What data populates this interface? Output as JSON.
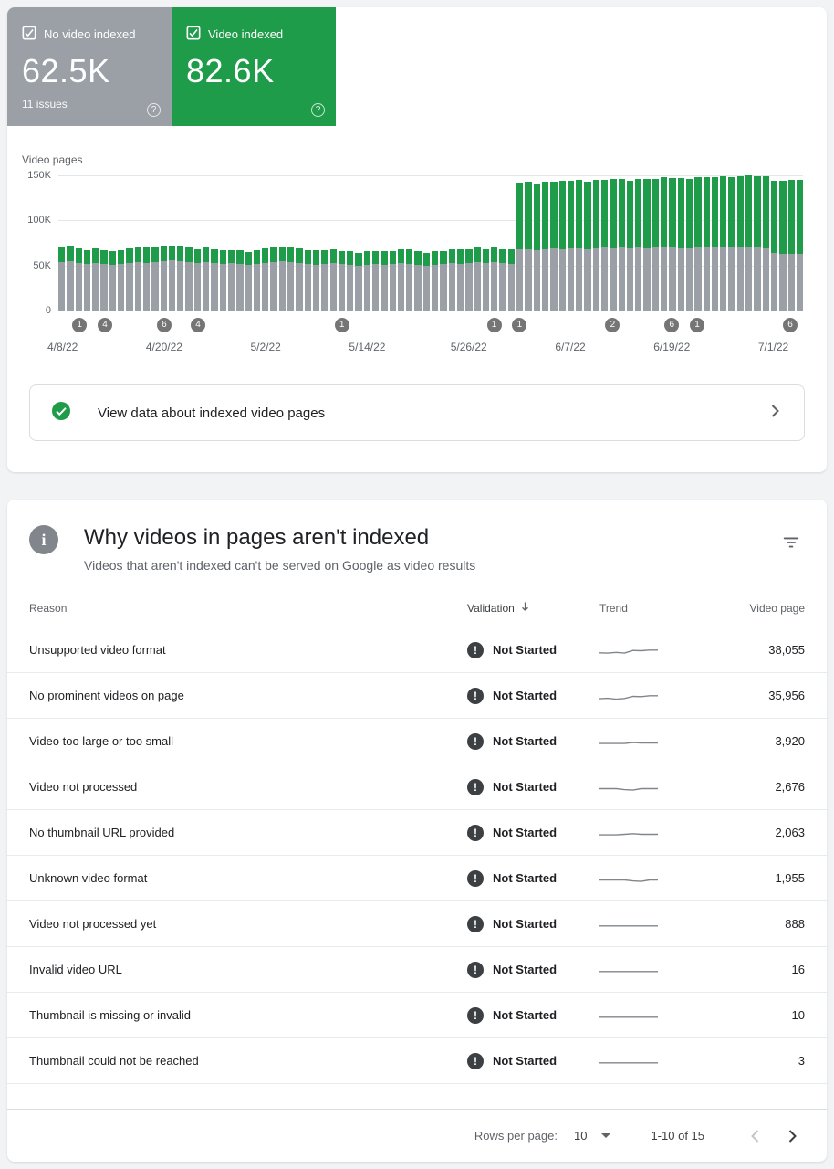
{
  "colors": {
    "green": "#1e9c49",
    "gray": "#9aa0a6",
    "page_bg": "#f1f3f4",
    "status_icon": "#3c4043",
    "marker": "#757575",
    "sparkline": "#80868b"
  },
  "summary": {
    "cards": [
      {
        "id": "not-indexed",
        "label": "No video indexed",
        "value": "62.5K",
        "sub": "11 issues",
        "checked": true,
        "color": "#9aa0a6"
      },
      {
        "id": "indexed",
        "label": "Video indexed",
        "value": "82.6K",
        "sub": "",
        "checked": true,
        "color": "#1e9c49"
      }
    ]
  },
  "chart": {
    "title": "Video pages",
    "y_ticks": [
      "150K",
      "100K",
      "50K",
      "0"
    ],
    "x_ticks": [
      {
        "i": 0,
        "label": "4/8/22"
      },
      {
        "i": 12,
        "label": "4/20/22"
      },
      {
        "i": 24,
        "label": "5/2/22"
      },
      {
        "i": 36,
        "label": "5/14/22"
      },
      {
        "i": 48,
        "label": "5/26/22"
      },
      {
        "i": 60,
        "label": "6/7/22"
      },
      {
        "i": 72,
        "label": "6/19/22"
      },
      {
        "i": 84,
        "label": "7/1/22"
      }
    ],
    "markers": [
      {
        "i": 2,
        "n": "1"
      },
      {
        "i": 5,
        "n": "4"
      },
      {
        "i": 12,
        "n": "6"
      },
      {
        "i": 16,
        "n": "4"
      },
      {
        "i": 33,
        "n": "1"
      },
      {
        "i": 51,
        "n": "1"
      },
      {
        "i": 54,
        "n": "1"
      },
      {
        "i": 65,
        "n": "2"
      },
      {
        "i": 72,
        "n": "6"
      },
      {
        "i": 75,
        "n": "1"
      },
      {
        "i": 86,
        "n": "6"
      }
    ]
  },
  "chart_data": {
    "type": "bar",
    "stacked": true,
    "title": "Video pages",
    "ylabel": "Video pages (thousands)",
    "ylim": [
      0,
      150
    ],
    "x_start": "4/8/22",
    "x_end": "7/4/22",
    "x_interval": "daily",
    "legend_position": "none",
    "grid": true,
    "series": [
      {
        "name": "No video indexed",
        "color": "#9aa0a6",
        "values": [
          54,
          55,
          53,
          52,
          53,
          52,
          51,
          52,
          53,
          54,
          53,
          54,
          55,
          56,
          55,
          54,
          53,
          54,
          53,
          52,
          53,
          52,
          51,
          52,
          53,
          54,
          55,
          54,
          53,
          52,
          51,
          52,
          53,
          52,
          51,
          50,
          51,
          52,
          51,
          52,
          53,
          52,
          51,
          50,
          51,
          52,
          53,
          52,
          53,
          54,
          53,
          54,
          53,
          52,
          68,
          68,
          67,
          68,
          69,
          68,
          69,
          69,
          68,
          69,
          70,
          69,
          70,
          69,
          70,
          69,
          70,
          70,
          70,
          69,
          69,
          70,
          70,
          70,
          70,
          70,
          70,
          70,
          70,
          69,
          64,
          63,
          63,
          62.5
        ]
      },
      {
        "name": "Video indexed",
        "color": "#1e9c49",
        "values": [
          16,
          17,
          16,
          15,
          16,
          15,
          15,
          15,
          16,
          16,
          17,
          16,
          17,
          16,
          17,
          16,
          15,
          16,
          15,
          15,
          14,
          15,
          14,
          15,
          16,
          17,
          16,
          17,
          16,
          15,
          16,
          15,
          15,
          14,
          15,
          14,
          15,
          14,
          15,
          14,
          15,
          16,
          15,
          14,
          15,
          14,
          15,
          16,
          15,
          16,
          15,
          16,
          15,
          16,
          74,
          75,
          74,
          75,
          74,
          76,
          75,
          76,
          75,
          76,
          75,
          77,
          76,
          75,
          76,
          77,
          76,
          78,
          77,
          78,
          77,
          78,
          78,
          78,
          79,
          78,
          79,
          80,
          79,
          80,
          80,
          81,
          82,
          82.6
        ]
      }
    ]
  },
  "banner": {
    "text": "View data about indexed video pages"
  },
  "why": {
    "title": "Why videos in pages aren't indexed",
    "subtitle": "Videos that aren't indexed can't be served on Google as video results"
  },
  "table": {
    "columns": [
      "Reason",
      "Validation",
      "Trend",
      "Video page"
    ],
    "sorted_by": "Validation",
    "rows": [
      {
        "reason": "Unsupported video format",
        "validation": "Not Started",
        "video_pages": "38,055",
        "trend": [
          0.32,
          0.3,
          0.36,
          0.3,
          0.52,
          0.5,
          0.55,
          0.55
        ]
      },
      {
        "reason": "No prominent videos on page",
        "validation": "Not Started",
        "video_pages": "35,956",
        "trend": [
          0.3,
          0.34,
          0.26,
          0.32,
          0.5,
          0.48,
          0.55,
          0.55
        ]
      },
      {
        "reason": "Video too large or too small",
        "validation": "Not Started",
        "video_pages": "3,920",
        "trend": [
          0.38,
          0.38,
          0.38,
          0.38,
          0.46,
          0.42,
          0.42,
          0.42
        ]
      },
      {
        "reason": "Video not processed",
        "validation": "Not Started",
        "video_pages": "2,676",
        "trend": [
          0.42,
          0.42,
          0.42,
          0.34,
          0.3,
          0.42,
          0.42,
          0.42
        ]
      },
      {
        "reason": "No thumbnail URL provided",
        "validation": "Not Started",
        "video_pages": "2,063",
        "trend": [
          0.38,
          0.38,
          0.38,
          0.42,
          0.48,
          0.42,
          0.42,
          0.42
        ]
      },
      {
        "reason": "Unknown video format",
        "validation": "Not Started",
        "video_pages": "1,955",
        "trend": [
          0.42,
          0.42,
          0.42,
          0.42,
          0.34,
          0.3,
          0.42,
          0.42
        ]
      },
      {
        "reason": "Video not processed yet",
        "validation": "Not Started",
        "video_pages": "888",
        "trend": [
          0.4,
          0.4,
          0.4,
          0.4,
          0.4,
          0.4,
          0.4,
          0.4
        ]
      },
      {
        "reason": "Invalid video URL",
        "validation": "Not Started",
        "video_pages": "16",
        "trend": [
          0.4,
          0.4,
          0.4,
          0.4,
          0.4,
          0.4,
          0.4,
          0.4
        ]
      },
      {
        "reason": "Thumbnail is missing or invalid",
        "validation": "Not Started",
        "video_pages": "10",
        "trend": [
          0.4,
          0.4,
          0.4,
          0.4,
          0.4,
          0.4,
          0.4,
          0.4
        ]
      },
      {
        "reason": "Thumbnail could not be reached",
        "validation": "Not Started",
        "video_pages": "3",
        "trend": [
          0.4,
          0.4,
          0.4,
          0.4,
          0.4,
          0.4,
          0.4,
          0.4
        ]
      }
    ]
  },
  "footer": {
    "rows_per_page_label": "Rows per page:",
    "rows_per_page": "10",
    "range": "1-10 of 15"
  }
}
